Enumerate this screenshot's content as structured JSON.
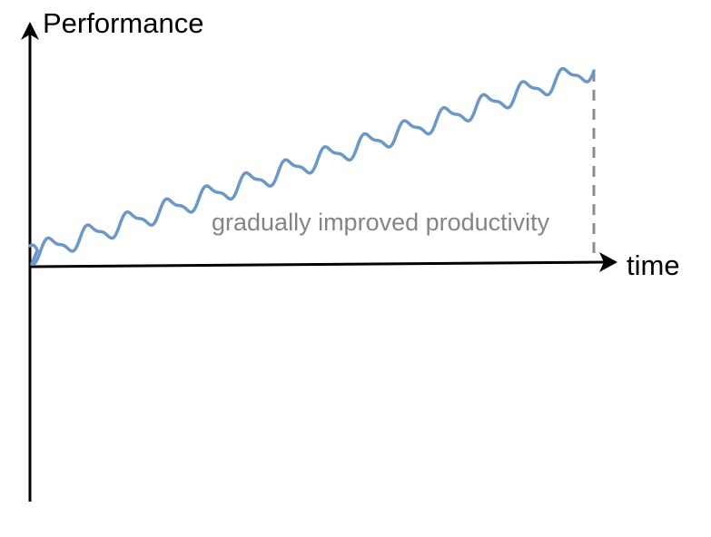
{
  "diagram": {
    "y_axis_label": "Performance",
    "x_axis_label": "time",
    "annotation": "gradually improved productivity",
    "curve_description": "sawtooth-like wave with a steadily rising trend",
    "colors": {
      "axes": "#000000",
      "curve": "#6a98c8",
      "annotation_text": "#858585",
      "dashed_marker": "#8c8c8c"
    }
  }
}
